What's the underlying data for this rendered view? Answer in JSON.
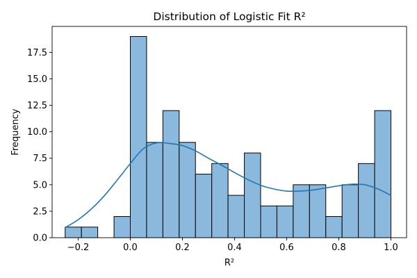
{
  "chart_data": {
    "type": "histogram",
    "title": "Distribution of Logistic Fit R²",
    "xlabel": "R²",
    "ylabel": "Frequency",
    "xlim": [
      -0.3,
      1.06
    ],
    "ylim": [
      0,
      19.95
    ],
    "grid": false,
    "legend": "none",
    "x_ticks": [
      -0.2,
      0.0,
      0.2,
      0.4,
      0.6,
      0.8,
      1.0
    ],
    "x_tick_labels": [
      "−0.2",
      "0.0",
      "0.2",
      "0.4",
      "0.6",
      "0.8",
      "1.0"
    ],
    "y_ticks": [
      0.0,
      2.5,
      5.0,
      7.5,
      10.0,
      12.5,
      15.0,
      17.5
    ],
    "y_tick_labels": [
      "0.0",
      "2.5",
      "5.0",
      "7.5",
      "10.0",
      "12.5",
      "15.0",
      "17.5"
    ],
    "bin_edges": [
      -0.25,
      -0.1875,
      -0.125,
      -0.0625,
      0.0,
      0.0625,
      0.125,
      0.1875,
      0.25,
      0.3125,
      0.375,
      0.4375,
      0.5,
      0.5625,
      0.625,
      0.6875,
      0.75,
      0.8125,
      0.875,
      0.9375,
      1.0
    ],
    "counts": [
      1,
      1,
      0,
      2,
      19,
      9,
      12,
      9,
      6,
      7,
      4,
      8,
      3,
      3,
      5,
      5,
      2,
      5,
      7,
      12
    ],
    "bar_color": "#8ab9dd",
    "bar_edge_color": "#000000",
    "kde": {
      "color": "#1f77b4",
      "x": [
        -0.25,
        -0.2,
        -0.15,
        -0.1,
        -0.05,
        0.0,
        0.05,
        0.1,
        0.15,
        0.2,
        0.25,
        0.3,
        0.35,
        0.4,
        0.45,
        0.5,
        0.55,
        0.6,
        0.65,
        0.7,
        0.75,
        0.8,
        0.85,
        0.9,
        0.95,
        1.0
      ],
      "y": [
        0.95,
        1.7,
        2.7,
        3.95,
        5.45,
        7.0,
        8.4,
        8.95,
        8.9,
        8.7,
        8.2,
        7.5,
        6.85,
        6.15,
        5.5,
        4.95,
        4.6,
        4.4,
        4.4,
        4.5,
        4.7,
        4.9,
        5.05,
        5.0,
        4.6,
        4.0
      ]
    }
  }
}
